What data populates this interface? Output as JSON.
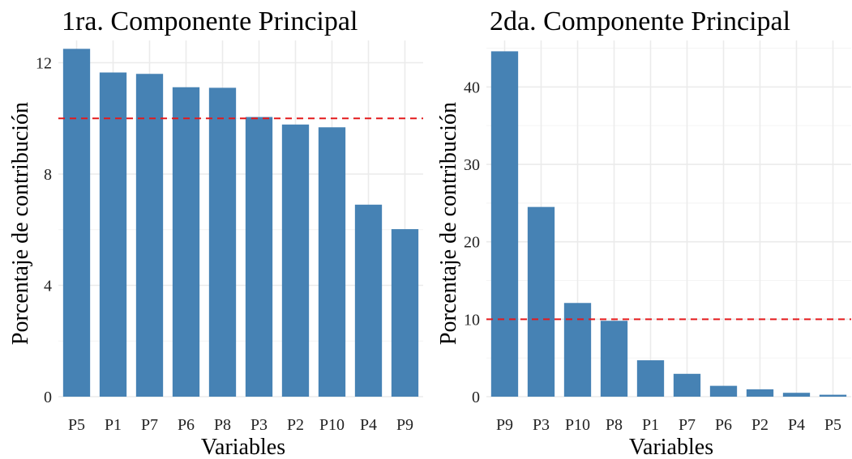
{
  "chart_data": [
    {
      "type": "bar",
      "title": "1ra. Componente Principal",
      "xlabel": "Variables",
      "ylabel": "Porcentaje de contribución",
      "categories": [
        "P5",
        "P1",
        "P7",
        "P6",
        "P8",
        "P3",
        "P2",
        "P10",
        "P4",
        "P9"
      ],
      "values": [
        12.5,
        11.65,
        11.6,
        11.12,
        11.1,
        10.05,
        9.78,
        9.68,
        6.9,
        6.02
      ],
      "ylim": [
        0,
        12.8
      ],
      "yticks": [
        0,
        4,
        8,
        12
      ],
      "reference_line": 10,
      "bar_color": "#4682b4",
      "reference_color": "#e41a1c",
      "grid": true
    },
    {
      "type": "bar",
      "title": "2da. Componente Principal",
      "xlabel": "Variables",
      "ylabel": "Porcentaje de contribución",
      "categories": [
        "P9",
        "P3",
        "P10",
        "P8",
        "P1",
        "P7",
        "P6",
        "P2",
        "P4",
        "P5"
      ],
      "values": [
        44.6,
        24.5,
        12.1,
        9.8,
        4.7,
        2.95,
        1.4,
        0.95,
        0.5,
        0.25
      ],
      "ylim": [
        0,
        46
      ],
      "yticks": [
        0,
        10,
        20,
        30,
        40
      ],
      "reference_line": 10,
      "bar_color": "#4682b4",
      "reference_color": "#e41a1c",
      "grid": true
    }
  ]
}
